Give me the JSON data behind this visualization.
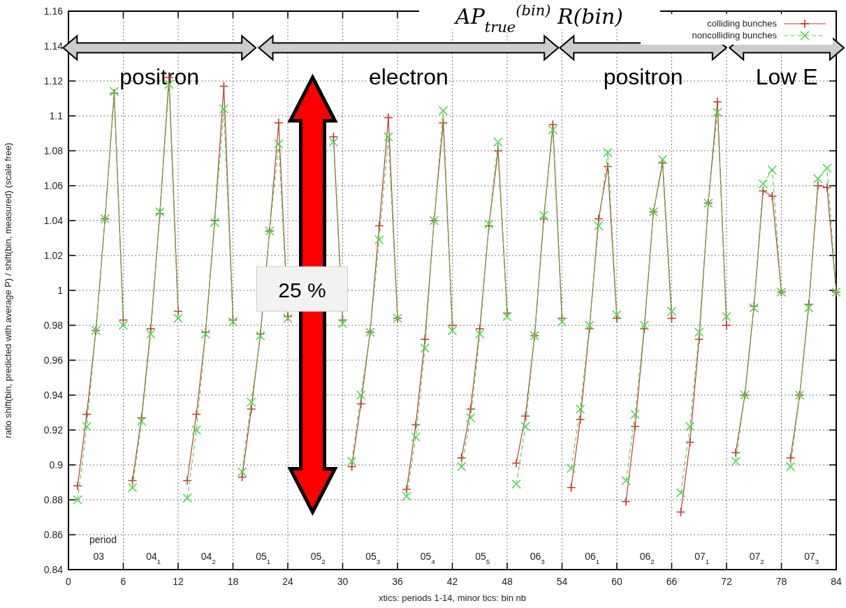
{
  "chart_data": {
    "type": "line",
    "title": "AP$_{true}$$^{(bin)}$   R(bin)",
    "xlabel": "xtics: periods 1-14, minor tics: bin nb",
    "ylabel": "ratio shift(bin, predicted with average P) / shift(bin, measured) (scale free)",
    "x": [
      1,
      2,
      3,
      4,
      5,
      6,
      6.5,
      7,
      8,
      9,
      10,
      11,
      12,
      12.5,
      13,
      14,
      15,
      16,
      17,
      18,
      18.5,
      19,
      20,
      21,
      22,
      23,
      24,
      24.5,
      25,
      26,
      27,
      28,
      29,
      30,
      30.5,
      31,
      32,
      33,
      34,
      35,
      36,
      36.5,
      37,
      38,
      39,
      40,
      41,
      42,
      42.5,
      43,
      44,
      45,
      46,
      47,
      48,
      48.5,
      49,
      50,
      51,
      52,
      53,
      54,
      54.5,
      55,
      56,
      57,
      58,
      59,
      60,
      60.5,
      61,
      62,
      63,
      64,
      65,
      66,
      66.5,
      67,
      68,
      69,
      70,
      71,
      72,
      72.5,
      73,
      74,
      75,
      76,
      77,
      78,
      78.5,
      79,
      80,
      81,
      82,
      83,
      84
    ],
    "series": [
      {
        "name": "colliding bunches",
        "color": "#c0392b",
        "marker": "cross",
        "line_style": "solid",
        "values": [
          0.888,
          0.929,
          0.977,
          1.041,
          1.113,
          0.983,
          null,
          0.891,
          0.927,
          0.978,
          1.044,
          1.122,
          0.988,
          null,
          0.891,
          0.929,
          0.976,
          1.04,
          1.117,
          0.983,
          null,
          0.893,
          0.932,
          0.975,
          1.034,
          1.096,
          0.985,
          null,
          null,
          null,
          null,
          null,
          1.088,
          0.983,
          null,
          0.899,
          0.935,
          0.976,
          1.037,
          1.099,
          0.984,
          null,
          0.886,
          0.923,
          0.972,
          1.04,
          1.096,
          0.98,
          null,
          0.904,
          0.932,
          0.978,
          1.037,
          1.08,
          0.987,
          null,
          0.901,
          0.928,
          0.974,
          1.041,
          1.095,
          0.984,
          null,
          0.887,
          0.926,
          0.978,
          1.041,
          1.071,
          0.984,
          null,
          0.879,
          0.922,
          0.978,
          1.045,
          1.073,
          0.984,
          null,
          0.873,
          0.913,
          0.972,
          1.05,
          1.108,
          0.98,
          null,
          0.907,
          0.94,
          0.991,
          1.057,
          1.054,
          0.999,
          null,
          0.904,
          0.94,
          0.992,
          1.06,
          1.059,
          0.999
        ]
      },
      {
        "name": "noncolliding bunches",
        "color": "#4cd64c",
        "marker": "x",
        "line_style": "dashed",
        "values": [
          0.88,
          0.922,
          0.977,
          1.041,
          1.114,
          0.98,
          null,
          0.887,
          0.925,
          0.975,
          1.045,
          1.118,
          0.984,
          null,
          0.881,
          0.92,
          0.975,
          1.039,
          1.104,
          0.982,
          null,
          0.896,
          0.936,
          0.974,
          1.034,
          1.084,
          0.984,
          null,
          null,
          null,
          null,
          null,
          1.085,
          0.981,
          null,
          0.902,
          0.94,
          0.976,
          1.029,
          1.088,
          0.984,
          null,
          0.882,
          0.916,
          0.967,
          1.04,
          1.103,
          0.977,
          null,
          0.899,
          0.927,
          0.975,
          1.038,
          1.085,
          0.985,
          null,
          0.889,
          0.922,
          0.974,
          1.043,
          1.092,
          0.982,
          null,
          0.898,
          0.932,
          0.98,
          1.037,
          1.079,
          0.986,
          null,
          0.891,
          0.929,
          0.98,
          1.045,
          1.075,
          0.988,
          null,
          0.884,
          0.922,
          0.976,
          1.05,
          1.102,
          0.985,
          null,
          0.902,
          0.94,
          0.99,
          1.061,
          1.069,
          0.999,
          null,
          0.899,
          0.94,
          0.99,
          1.064,
          1.07,
          0.999
        ]
      }
    ],
    "xlim": [
      0,
      84
    ],
    "xticks": [
      0,
      6,
      12,
      18,
      24,
      30,
      36,
      42,
      48,
      54,
      60,
      66,
      72,
      78,
      84
    ],
    "ylim": [
      0.84,
      1.16
    ],
    "yticks": [
      0.84,
      0.86,
      0.88,
      0.9,
      0.92,
      0.94,
      0.96,
      0.98,
      1,
      1.02,
      1.04,
      1.06,
      1.08,
      1.1,
      1.12,
      1.14,
      1.16
    ],
    "grid": true,
    "legend": "top right",
    "annotations": [
      "positron",
      "electron",
      "positron",
      "Low E",
      "25 %",
      "period",
      "03",
      "04$_{1}$",
      "04$_{2}$",
      "05$_{1}$",
      "05$_{2}$",
      "05$_{3}$",
      "05$_{4}$",
      "05$_{5}$",
      "06$_{3}$",
      "06$_{1}$",
      "06$_{2}$",
      "07$_{1}$",
      "07$_{2}$",
      "07$_{3}$"
    ]
  }
}
